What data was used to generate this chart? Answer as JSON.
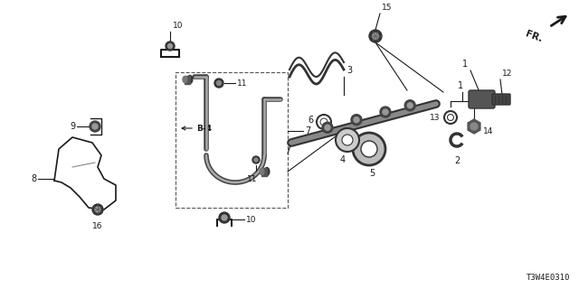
{
  "bg_color": "#ffffff",
  "lc": "#1a1a1a",
  "footer_code": "T3W4E0310",
  "figsize": [
    6.4,
    3.2
  ],
  "dpi": 100,
  "xlim": [
    0,
    640
  ],
  "ylim": [
    0,
    320
  ]
}
